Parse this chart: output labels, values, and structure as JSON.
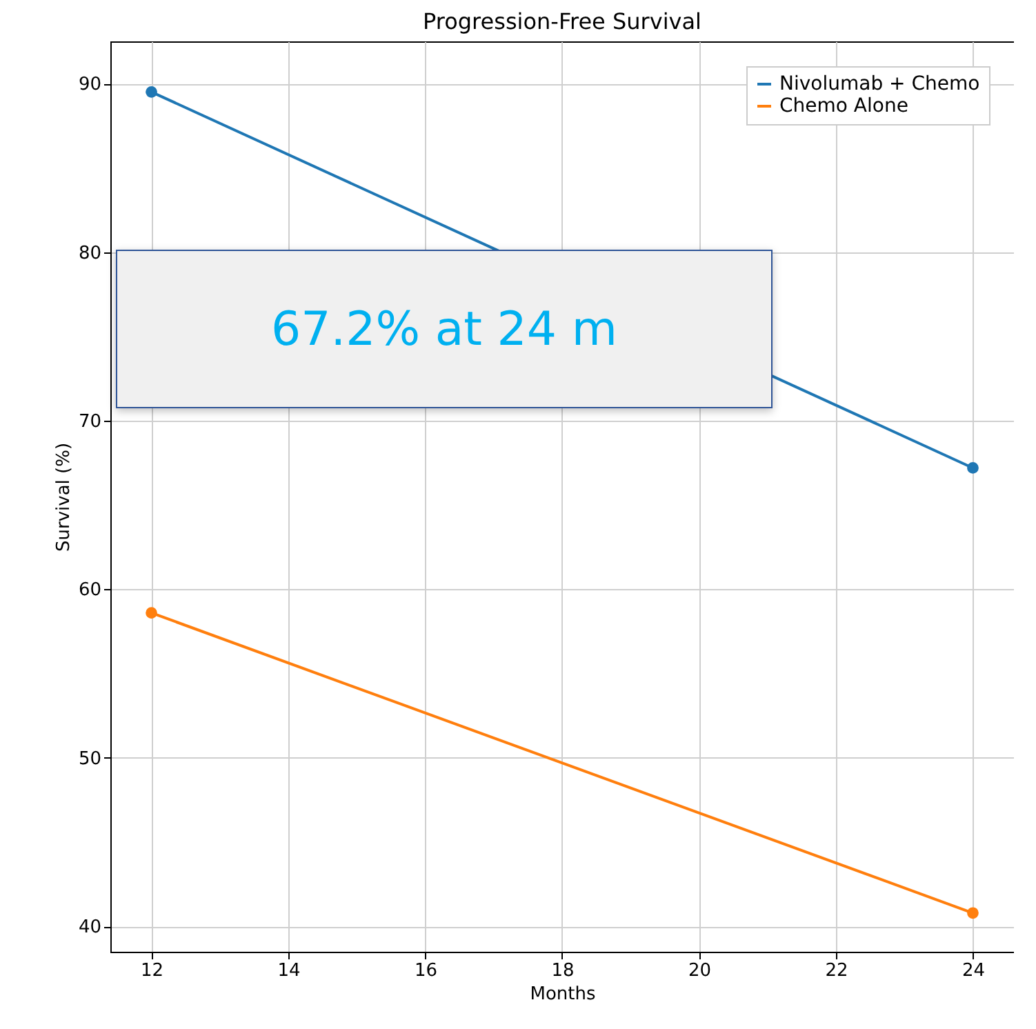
{
  "chart_data": {
    "type": "line",
    "title": "Progression-Free Survival",
    "xlabel": "Months",
    "ylabel": "Survival (%)",
    "x": [
      12,
      24
    ],
    "series": [
      {
        "name": "Nivolumab + Chemo",
        "color": "#1f77b4",
        "values": [
          89.5,
          67.2
        ]
      },
      {
        "name": "Chemo Alone",
        "color": "#ff7f0e",
        "values": [
          58.6,
          40.8
        ]
      }
    ],
    "xlim": [
      11.4,
      24.6
    ],
    "xticks": [
      12,
      14,
      16,
      18,
      20,
      22,
      24
    ],
    "ylim": [
      38.5,
      92.5
    ],
    "yticks": [
      40,
      50,
      60,
      70,
      80,
      90
    ],
    "grid": true,
    "legend": "top right",
    "marker": "circle",
    "line_style": "solid",
    "annotations": [
      "67.2% at 24 m"
    ]
  }
}
